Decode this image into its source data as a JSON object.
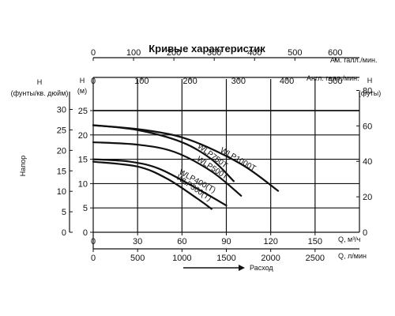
{
  "chart_data": {
    "type": "line",
    "title": "Кривые характеристик",
    "axes": {
      "top_us": {
        "label": "Ам. галл./мин.",
        "ticks": [
          "0",
          "100",
          "200",
          "300",
          "400",
          "500",
          "600"
        ],
        "range": [
          0,
          660
        ]
      },
      "top_imp": {
        "label": "Англ. галл./мин.",
        "ticks": [
          "0",
          "100",
          "200",
          "300",
          "400",
          "500"
        ],
        "range": [
          0,
          550
        ]
      },
      "left_psi": {
        "label": "Н (фунты/кв. дюйм)",
        "label_line1": "Н",
        "label_line2": "(фунты/кв. дюйм)",
        "ticks": [
          "0",
          "5",
          "10",
          "15",
          "20",
          "25",
          "30"
        ],
        "range": [
          0,
          35.5
        ]
      },
      "left_m": {
        "label": "Н (м)",
        "label_line1": "Н",
        "label_line2": "(м)",
        "ticks": [
          "0",
          "5",
          "10",
          "15",
          "20",
          "25"
        ],
        "range": [
          0,
          25
        ]
      },
      "right_ft": {
        "label": "Н (футы)",
        "label_line1": "Н",
        "label_line2": "(футы)",
        "ticks": [
          "0",
          "20",
          "40",
          "60",
          "80"
        ],
        "range": [
          0,
          82
        ]
      },
      "bottom_m3h": {
        "label": "Q, м³/ч",
        "ticks": [
          "0",
          "30",
          "60",
          "90",
          "120",
          "150"
        ],
        "range": [
          0,
          180
        ]
      },
      "bottom_lmin": {
        "label": "Q, л/мин",
        "ticks": [
          "0",
          "500",
          "1000",
          "1500",
          "2000",
          "2500"
        ],
        "range": [
          0,
          3000
        ]
      },
      "side_head_label": "Напор",
      "flow_label": "Расход"
    },
    "grid": true,
    "x_unit": "м³/ч",
    "y_unit": "м",
    "series": [
      {
        "name": "WLP300(T)",
        "x": [
          0,
          30,
          50,
          70,
          80
        ],
        "y": [
          14.5,
          13.5,
          11,
          7,
          4.8
        ]
      },
      {
        "name": "WLP400(T)",
        "x": [
          0,
          25,
          45,
          70,
          90
        ],
        "y": [
          15,
          14.5,
          13,
          9,
          5.5
        ]
      },
      {
        "name": "WLP500T",
        "x": [
          0,
          30,
          55,
          80,
          100
        ],
        "y": [
          18.5,
          18,
          16.5,
          12.5,
          7.5
        ]
      },
      {
        "name": "WLP750T",
        "x": [
          0,
          30,
          60,
          80,
          95
        ],
        "y": [
          22,
          21,
          18.5,
          15,
          10.5
        ]
      },
      {
        "name": "WLP1000T",
        "x": [
          0,
          35,
          65,
          100,
          125
        ],
        "y": [
          22,
          21,
          19,
          14,
          8.5
        ]
      }
    ]
  }
}
